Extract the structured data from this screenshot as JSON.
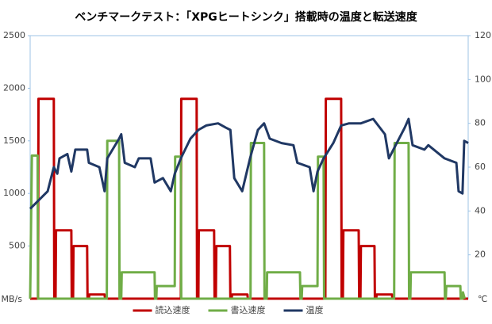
{
  "chart_data": {
    "type": "line",
    "title": "ベンチマークテスト：「XPGヒートシンク」搭載時の温度と転送速度",
    "ylabel": "MB/s",
    "y2label": "℃",
    "xlim": [
      0,
      100
    ],
    "ylim": [
      0,
      2500
    ],
    "yticks": [
      500,
      1000,
      1500,
      2000,
      2500
    ],
    "y2lim": [
      0,
      120
    ],
    "y2ticks": [
      20,
      40,
      60,
      80,
      100,
      120
    ],
    "legend": "bottom",
    "series": [
      {
        "name": "読込速度",
        "color": "#c00000",
        "x": [
          0,
          1.8,
          1.9,
          5.4,
          5.5,
          5.8,
          5.9,
          9.4,
          9.5,
          9.8,
          9.9,
          13,
          13.1,
          13.4,
          13.5,
          17,
          17.1,
          34.4,
          34.5,
          38,
          38.1,
          38.4,
          38.5,
          42,
          42.1,
          42.4,
          42.5,
          45.6,
          45.7,
          46,
          46.1,
          49.6,
          49.7,
          67.4,
          67.5,
          71,
          71.1,
          71.4,
          71.5,
          75,
          75.1,
          75.4,
          75.5,
          78.6,
          78.7,
          79,
          79.1,
          82.6,
          82.7,
          100
        ],
        "values": [
          0,
          0,
          1900,
          1900,
          0,
          0,
          650,
          650,
          0,
          0,
          500,
          500,
          0,
          0,
          40,
          40,
          0,
          0,
          1900,
          1900,
          0,
          0,
          650,
          650,
          0,
          0,
          500,
          500,
          0,
          0,
          40,
          40,
          0,
          0,
          1900,
          1900,
          0,
          0,
          650,
          650,
          0,
          0,
          500,
          500,
          0,
          0,
          40,
          40,
          0,
          0
        ]
      },
      {
        "name": "書込速度",
        "color": "#70ad47",
        "x": [
          0,
          0.4,
          1.7,
          1.8,
          17.5,
          17.6,
          20.3,
          20.4,
          20.8,
          20.9,
          28.4,
          28.5,
          28.8,
          28.9,
          33,
          33.1,
          34.4,
          34.5,
          50.3,
          50.4,
          53.4,
          53.5,
          54,
          54.1,
          61.6,
          61.7,
          62,
          62.1,
          65.6,
          65.7,
          67,
          67.1,
          83.1,
          83.2,
          86.4,
          86.5,
          86.8,
          86.9,
          94.6,
          94.7,
          94.9,
          95,
          98.2,
          98.3,
          98.7,
          98.8,
          99.2
        ],
        "values": [
          0,
          1360,
          1360,
          0,
          0,
          1500,
          1500,
          0,
          0,
          250,
          250,
          0,
          0,
          120,
          120,
          1350,
          1350,
          0,
          0,
          1480,
          1480,
          0,
          0,
          250,
          250,
          0,
          0,
          120,
          120,
          1350,
          1350,
          0,
          0,
          1480,
          1480,
          0,
          0,
          250,
          250,
          0,
          0,
          120,
          120,
          0,
          0,
          60,
          0
        ]
      },
      {
        "name": "温度",
        "color": "#203864",
        "axis": "y2",
        "x": [
          0,
          4,
          5.4,
          6.2,
          6.7,
          8.5,
          9.4,
          10.3,
          13,
          13.4,
          15.8,
          17,
          17.6,
          20.3,
          20.8,
          21.6,
          23.9,
          24.8,
          27.5,
          28.4,
          30.3,
          32.1,
          33,
          34.4,
          36.6,
          38.4,
          40.2,
          42.9,
          44.7,
          45.7,
          46.6,
          48.4,
          50.2,
          52,
          53.4,
          54.7,
          57.4,
          60.1,
          61,
          63.8,
          64.7,
          65.6,
          67,
          69.2,
          71,
          72.8,
          75.5,
          78.3,
          81,
          81.9,
          83.7,
          85.5,
          86.4,
          87.3,
          90,
          90.9,
          94.6,
          97.3,
          97.8,
          98.7,
          99.1,
          100
        ],
        "values": [
          41,
          49,
          60,
          57,
          64,
          66,
          58,
          68,
          68,
          62,
          60,
          49,
          64,
          73,
          75,
          62,
          60,
          64,
          64,
          53,
          55,
          49,
          57,
          64,
          73,
          77,
          79,
          80,
          78,
          77,
          55,
          49,
          64,
          77,
          80,
          73,
          71,
          70,
          62,
          60,
          49,
          58,
          64,
          71,
          79,
          80,
          80,
          82,
          75,
          64,
          71,
          78,
          82,
          70,
          68,
          70,
          64,
          62,
          49,
          48,
          72,
          71
        ]
      }
    ]
  }
}
